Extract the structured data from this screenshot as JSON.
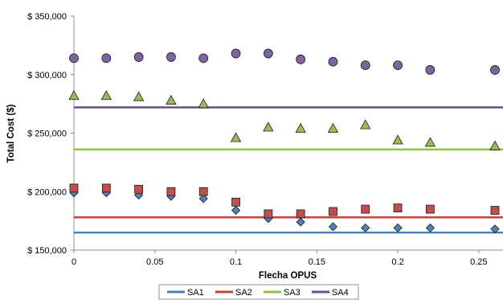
{
  "chart_data": {
    "type": "scatter",
    "title": "",
    "xlabel": "Flecha OPUS",
    "ylabel": "Total Cost ($)",
    "xlim": [
      0,
      0.26
    ],
    "ylim": [
      150000,
      350000
    ],
    "x_ticks": [
      0,
      0.05,
      0.1,
      0.15,
      0.2,
      0.25
    ],
    "x_tick_labels": [
      "0",
      "0.05",
      "0.1",
      "0.15",
      "0.2",
      "0.25"
    ],
    "y_ticks": [
      150000,
      200000,
      250000,
      300000,
      350000
    ],
    "y_tick_labels": [
      "$ 150,000",
      "$ 200,000",
      "$ 250,000",
      "$ 300,000",
      "$ 350,000"
    ],
    "grid": false,
    "legend_position": "bottom",
    "x": [
      0,
      0.02,
      0.04,
      0.06,
      0.08,
      0.1,
      0.12,
      0.14,
      0.16,
      0.18,
      0.2,
      0.22,
      0.26
    ],
    "series": [
      {
        "name": "SA1",
        "marker": "diamond",
        "marker_color": "#4F81BD",
        "line_color": "#4A7EBB",
        "values": [
          199000,
          199000,
          197000,
          196000,
          194000,
          184000,
          177000,
          174000,
          170000,
          169000,
          169000,
          169000,
          168000
        ],
        "constant": 165000
      },
      {
        "name": "SA2",
        "marker": "square",
        "marker_color": "#C0504D",
        "line_color": "#C9413E",
        "values": [
          203000,
          203000,
          202000,
          200000,
          200000,
          191000,
          181000,
          181000,
          183000,
          185000,
          186000,
          185000,
          184000
        ],
        "constant": 178000
      },
      {
        "name": "SA3",
        "marker": "triangle",
        "marker_color": "#9BBB59",
        "line_color": "#8DC543",
        "values": [
          282000,
          282000,
          281000,
          278000,
          275000,
          246000,
          255000,
          254000,
          254000,
          257000,
          244000,
          242000,
          239000
        ],
        "constant": 236000
      },
      {
        "name": "SA4",
        "marker": "circle",
        "marker_color": "#8064A2",
        "line_color": "#6A4E8E",
        "values": [
          314000,
          314000,
          315000,
          315000,
          314000,
          318000,
          318000,
          313000,
          311000,
          308000,
          308000,
          304000,
          304000
        ],
        "constant": 272000
      }
    ]
  }
}
